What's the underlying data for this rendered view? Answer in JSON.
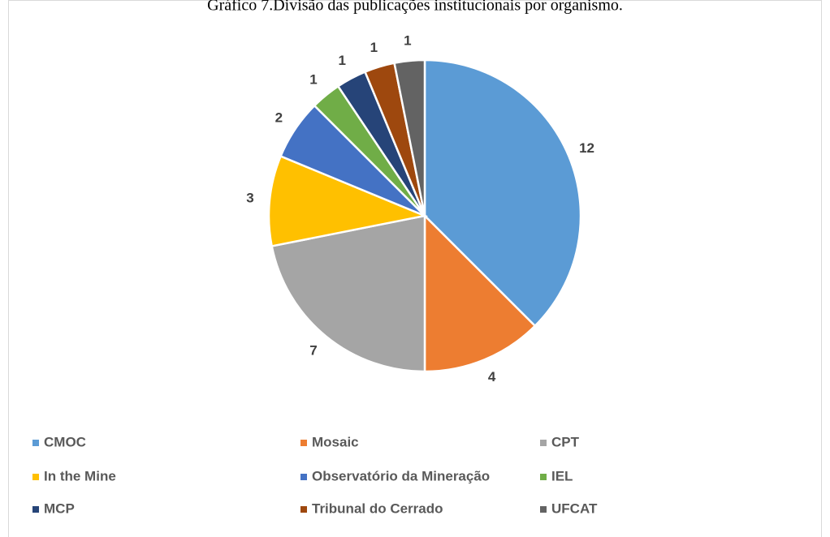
{
  "chart_data": {
    "type": "pie",
    "title": "Gráfico 7.Divisão das publicações institucionais por organismo.",
    "categories": [
      "CMOC",
      "Mosaic",
      "CPT",
      "In the Mine",
      "Observatório da Mineração",
      "IEL",
      "MCP",
      "Tribunal do Cerrado",
      "UFCAT"
    ],
    "values": [
      12,
      4,
      7,
      3,
      2,
      1,
      1,
      1,
      1
    ],
    "colors": [
      "#5b9bd5",
      "#ed7d31",
      "#a5a5a5",
      "#ffc000",
      "#4472c4",
      "#70ad47",
      "#264478",
      "#9e480e",
      "#636363"
    ],
    "legend": "bottom"
  }
}
